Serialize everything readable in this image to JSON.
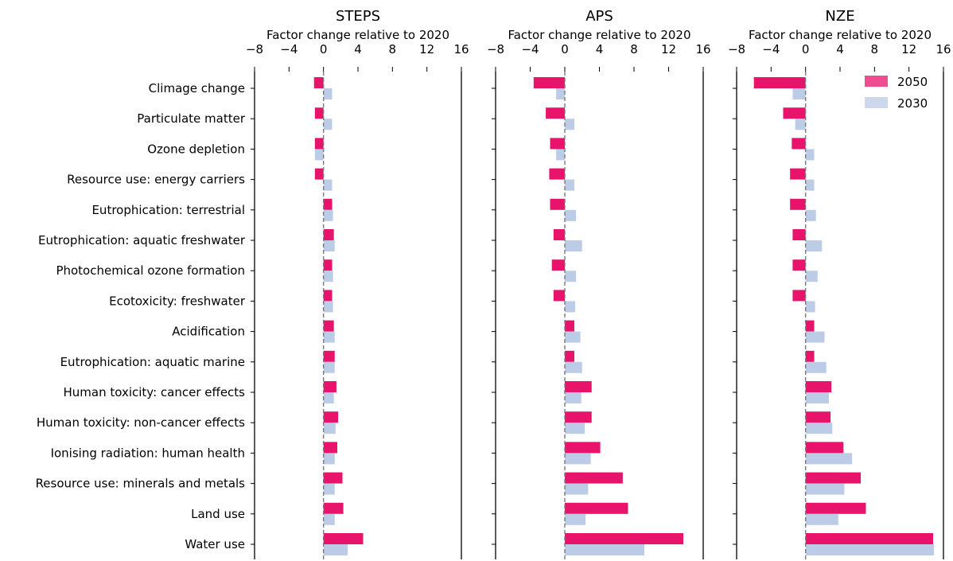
{
  "chart_data": {
    "type": "bar",
    "orientation": "horizontal",
    "categories": [
      "Climage change",
      "Particulate matter",
      "Ozone depletion",
      "Resource use: energy carriers",
      "Eutrophication: terrestrial",
      "Eutrophication: aquatic freshwater",
      "Photochemical ozone formation",
      "Ecotoxicity: freshwater",
      "Acidification",
      "Eutrophication: aquatic marine",
      "Human toxicity: cancer effects",
      "Human toxicity: non-cancer effects",
      "Ionising radiation: human health",
      "Resource use: minerals and metals",
      "Land use",
      "Water use"
    ],
    "xlim": [
      -8,
      16
    ],
    "xticks": [
      -8,
      -4,
      0,
      4,
      8,
      12,
      16
    ],
    "xtick_labels": [
      "−8",
      "−4",
      "0",
      "4",
      "8",
      "12",
      "16"
    ],
    "reference_line": 0,
    "legend": {
      "position": "top-right",
      "entries": [
        {
          "label": "2050",
          "color": "#e8136b"
        },
        {
          "label": "2030",
          "color": "#bccbe6"
        }
      ]
    },
    "panels": [
      {
        "title": "STEPS",
        "xlabel": "Factor change relative to 2020",
        "series": [
          {
            "name": "2050",
            "color": "#e8136b",
            "values": [
              -1.1,
              -1.0,
              -1.0,
              -1.0,
              1.0,
              1.2,
              1.0,
              1.0,
              1.2,
              1.3,
              1.5,
              1.7,
              1.6,
              2.2,
              2.3,
              4.6
            ]
          },
          {
            "name": "2030",
            "color": "#bccbe6",
            "values": [
              1.0,
              1.0,
              -1.0,
              1.0,
              1.1,
              1.3,
              1.1,
              1.1,
              1.3,
              1.3,
              1.2,
              1.4,
              1.3,
              1.3,
              1.3,
              2.8
            ]
          }
        ]
      },
      {
        "title": "APS",
        "xlabel": "Factor change relative to 2020",
        "series": [
          {
            "name": "2050",
            "color": "#e8136b",
            "values": [
              -3.6,
              -2.2,
              -1.7,
              -1.8,
              -1.7,
              -1.3,
              -1.5,
              -1.3,
              1.1,
              1.1,
              3.1,
              3.1,
              4.1,
              6.7,
              7.3,
              13.7
            ]
          },
          {
            "name": "2030",
            "color": "#bccbe6",
            "values": [
              -1.0,
              1.1,
              -1.0,
              1.1,
              1.3,
              2.0,
              1.3,
              1.2,
              1.8,
              2.0,
              1.9,
              2.3,
              3.0,
              2.7,
              2.4,
              9.2
            ]
          }
        ]
      },
      {
        "title": "NZE",
        "xlabel": "Factor change relative to 2020",
        "series": [
          {
            "name": "2050",
            "color": "#e8136b",
            "values": [
              -6.0,
              -2.6,
              -1.6,
              -1.8,
              -1.8,
              -1.5,
              -1.5,
              -1.5,
              1.0,
              1.0,
              3.0,
              2.9,
              4.4,
              6.4,
              7.0,
              14.8
            ]
          },
          {
            "name": "2030",
            "color": "#bccbe6",
            "values": [
              -1.5,
              -1.2,
              1.0,
              1.0,
              1.2,
              1.9,
              1.4,
              1.1,
              2.2,
              2.4,
              2.7,
              3.1,
              5.4,
              4.5,
              3.8,
              14.9
            ]
          }
        ]
      }
    ]
  }
}
